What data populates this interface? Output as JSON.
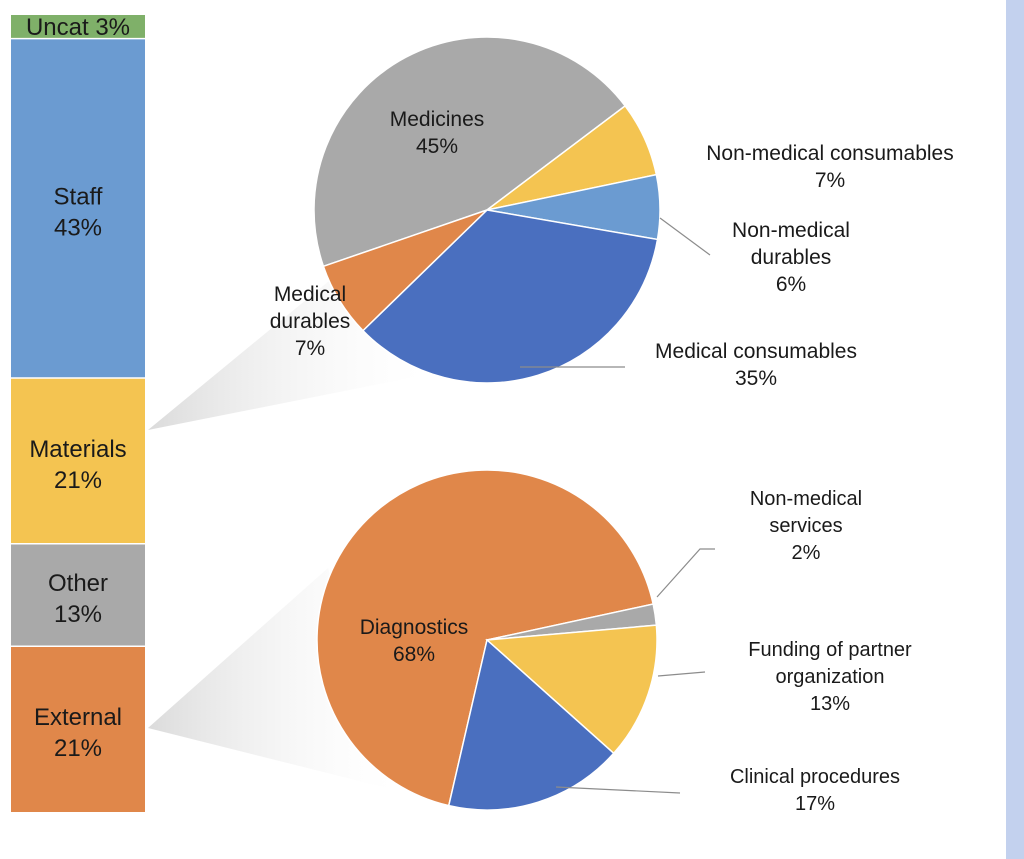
{
  "chart_data": [
    {
      "type": "bar",
      "stacked": true,
      "orientation": "vertical",
      "segments": [
        {
          "label": "Uncat 3%",
          "value": 3,
          "color": "#7fb069"
        },
        {
          "label": "Staff",
          "pct": "43%",
          "value": 43,
          "color": "#6b9bd1"
        },
        {
          "label": "Materials",
          "pct": "21%",
          "value": 21,
          "color": "#f4c451"
        },
        {
          "label": "Other",
          "pct": "13%",
          "value": 13,
          "color": "#a9a9a9"
        },
        {
          "label": "External",
          "pct": "21%",
          "value": 21,
          "color": "#e0874a"
        }
      ]
    },
    {
      "type": "pie",
      "breakdown_of": "Materials",
      "slices": [
        {
          "label_lines": [
            "Medicines"
          ],
          "pct": "45%",
          "value": 45,
          "color": "#a9a9a9"
        },
        {
          "label_lines": [
            "Non-medical consumables"
          ],
          "pct": "7%",
          "value": 7,
          "color": "#f4c451"
        },
        {
          "label_lines": [
            "Non-medical",
            "durables"
          ],
          "pct": "6%",
          "value": 6,
          "color": "#6b9bd1"
        },
        {
          "label_lines": [
            "Medical consumables"
          ],
          "pct": "35%",
          "value": 35,
          "color": "#4a6fbf"
        },
        {
          "label_lines": [
            "Medical",
            "durables"
          ],
          "pct": "7%",
          "value": 7,
          "color": "#e0874a"
        }
      ]
    },
    {
      "type": "pie",
      "breakdown_of": "External",
      "slices": [
        {
          "label_lines": [
            "Diagnostics"
          ],
          "pct": "68%",
          "value": 68,
          "color": "#e0874a"
        },
        {
          "label_lines": [
            "Non-medical",
            "services"
          ],
          "pct": "2%",
          "value": 2,
          "color": "#a9a9a9"
        },
        {
          "label_lines": [
            "Funding of partner",
            "organization"
          ],
          "pct": "13%",
          "value": 13,
          "color": "#f4c451"
        },
        {
          "label_lines": [
            "Clinical procedures"
          ],
          "pct": "17%",
          "value": 17,
          "color": "#4a6fbf"
        }
      ]
    }
  ]
}
